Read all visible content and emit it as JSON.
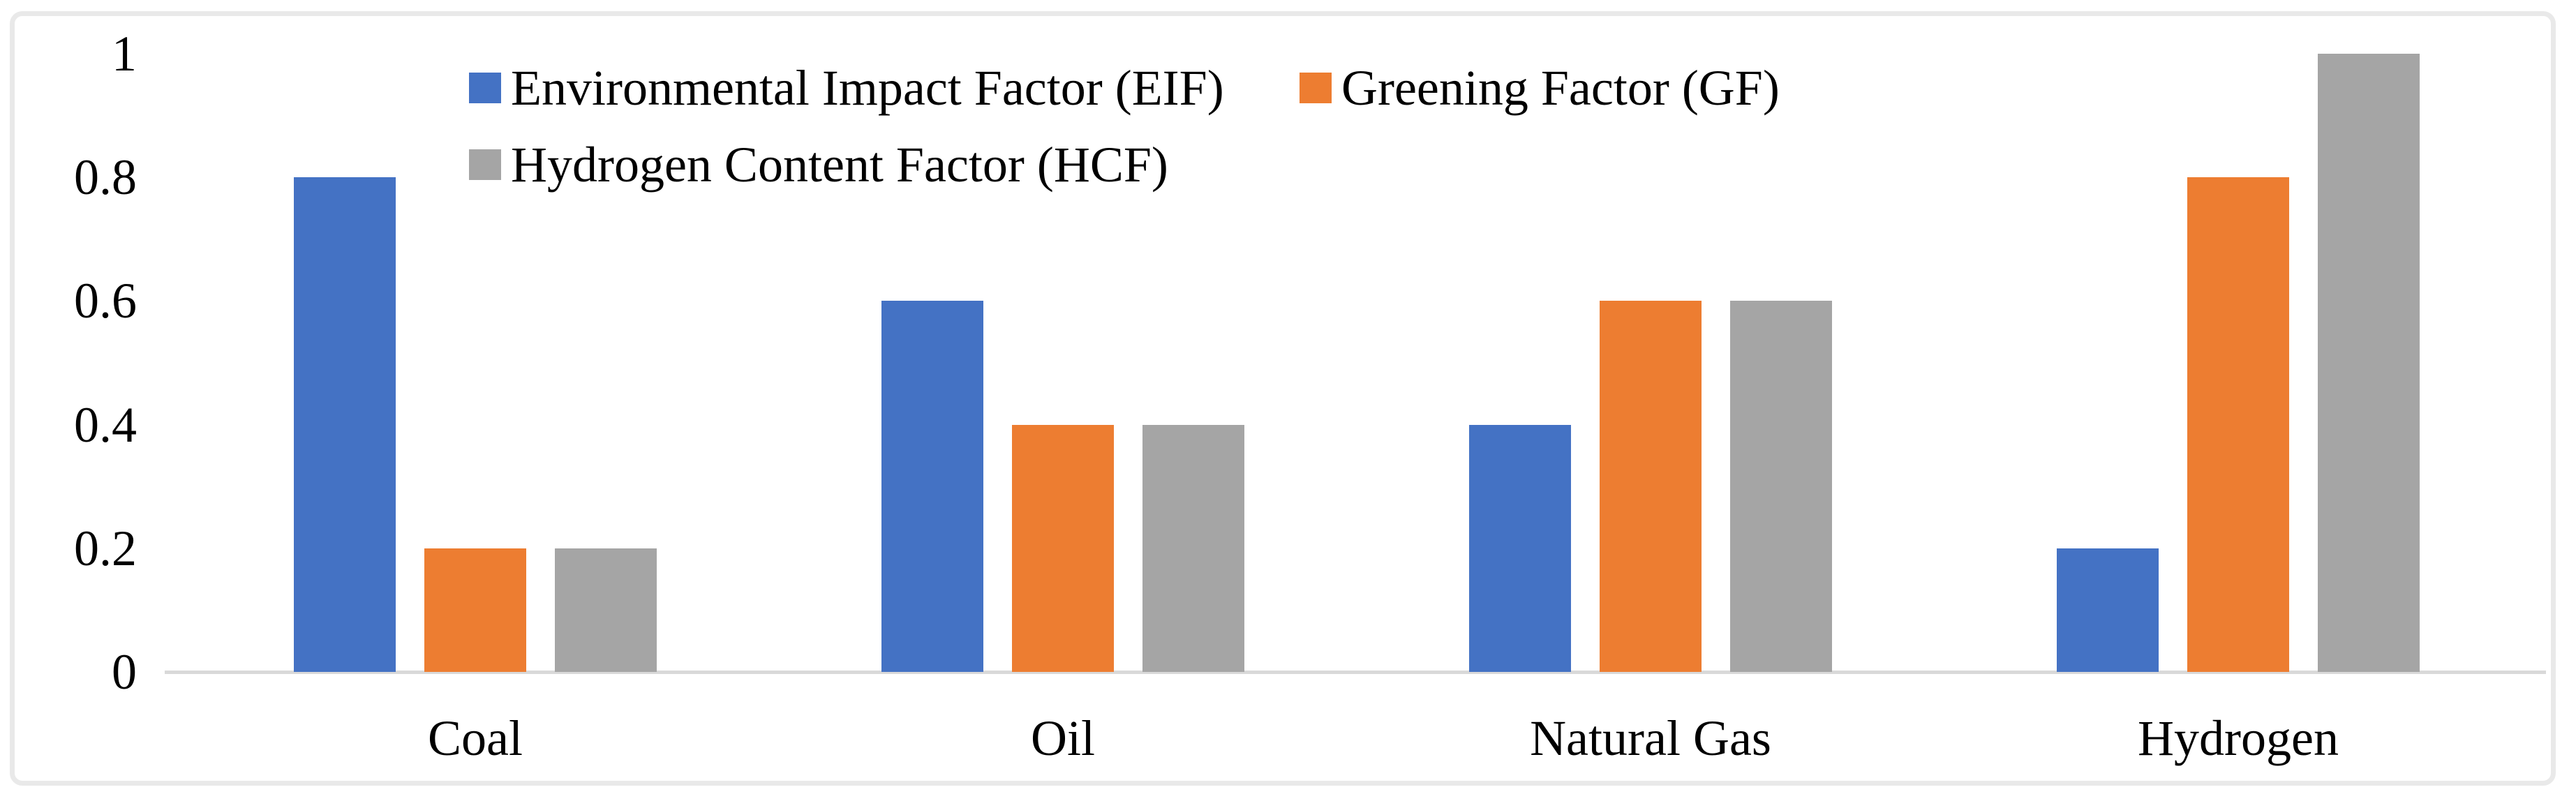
{
  "chart_data": {
    "type": "bar",
    "title": "",
    "categories": [
      "Coal",
      "Oil",
      "Natural Gas",
      "Hydrogen"
    ],
    "series": [
      {
        "name": "Environmental Impact Factor (EIF)",
        "color": "#4472C4",
        "values": [
          0.8,
          0.6,
          0.4,
          0.2
        ]
      },
      {
        "name": "Greening Factor (GF)",
        "color": "#ED7D31",
        "values": [
          0.2,
          0.4,
          0.6,
          0.8
        ]
      },
      {
        "name": "Hydrogen Content Factor (HCF)",
        "color": "#A5A5A5",
        "values": [
          0.2,
          0.4,
          0.6,
          1.0
        ]
      }
    ],
    "y_axis": {
      "min": 0,
      "max": 1,
      "ticks": [
        1,
        0.8,
        0.6,
        0.4,
        0.2,
        0
      ],
      "tick_labels": [
        "1",
        "0.8",
        "0.6",
        "0.4",
        "0.2",
        "0"
      ]
    },
    "grid": false,
    "legend_position": "top",
    "legend_rows": [
      [
        "Environmental Impact Factor (EIF)",
        "Greening Factor (GF)"
      ],
      [
        "Hydrogen Content Factor (HCF)"
      ]
    ],
    "axis_color": "#D9D9D9",
    "frame_color": "#E9E9E9",
    "text_color": "#000000"
  }
}
